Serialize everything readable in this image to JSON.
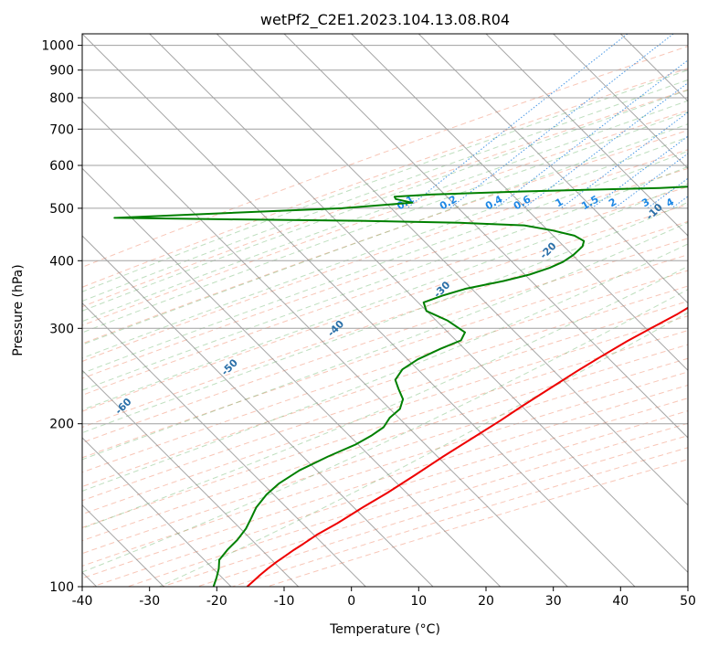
{
  "chart_data": {
    "type": "line",
    "title": "wetPf2_C2E1.2023.104.13.08.R04",
    "xlabel": "Temperature (°C)",
    "ylabel": "Pressure (hPa)",
    "xlim": [
      -40,
      50
    ],
    "ylim": [
      1050,
      100
    ],
    "x_ticks": [
      "-40",
      "-30",
      "-20",
      "-10",
      "0",
      "10",
      "20",
      "30",
      "40",
      "50"
    ],
    "y_ticks": [
      {
        "p": 100,
        "label": "100"
      },
      {
        "p": 200,
        "label": "200"
      },
      {
        "p": 300,
        "label": "300"
      },
      {
        "p": 400,
        "label": "400"
      },
      {
        "p": 500,
        "label": "500"
      },
      {
        "p": 600,
        "label": "600"
      },
      {
        "p": 700,
        "label": "700"
      },
      {
        "p": 800,
        "label": "800"
      },
      {
        "p": 900,
        "label": "900"
      },
      {
        "p": 1000,
        "label": "1000"
      }
    ],
    "skew_degrees": 45,
    "grid": true,
    "series": [
      {
        "name": "temperature",
        "color": "#ee0000",
        "points": [
          [
            25.1,
            850
          ],
          [
            24.9,
            830
          ],
          [
            24.6,
            815
          ],
          [
            24.3,
            800
          ],
          [
            24.0,
            785
          ],
          [
            23.3,
            760
          ],
          [
            22.6,
            740
          ],
          [
            21.8,
            720
          ],
          [
            21.2,
            700
          ],
          [
            20.9,
            680
          ],
          [
            20.9,
            660
          ],
          [
            21.1,
            640
          ],
          [
            21.4,
            620
          ],
          [
            21.9,
            605
          ],
          [
            22.4,
            595
          ],
          [
            22.4,
            585
          ],
          [
            21.8,
            575
          ],
          [
            21.4,
            565
          ],
          [
            21.3,
            550
          ],
          [
            21.4,
            535
          ],
          [
            21.3,
            520
          ],
          [
            20.9,
            505
          ],
          [
            20.5,
            490
          ],
          [
            19.9,
            475
          ],
          [
            19.3,
            460
          ],
          [
            18.8,
            450
          ],
          [
            18.1,
            440
          ],
          [
            16.9,
            425
          ],
          [
            15.1,
            405
          ],
          [
            13.4,
            390
          ],
          [
            11.9,
            376
          ],
          [
            10.8,
            362
          ],
          [
            10.0,
            350
          ],
          [
            9.1,
            335
          ],
          [
            7.9,
            318
          ],
          [
            6.3,
            302
          ],
          [
            4.5,
            284
          ],
          [
            2.9,
            266
          ],
          [
            1.5,
            250
          ],
          [
            0.1,
            233
          ],
          [
            -1.5,
            215
          ],
          [
            -2.5,
            203
          ],
          [
            -4.1,
            188
          ],
          [
            -5.7,
            174
          ],
          [
            -7.1,
            161
          ],
          [
            -8.6,
            149
          ],
          [
            -10.1,
            140
          ],
          [
            -11.5,
            131
          ],
          [
            -12.8,
            125
          ],
          [
            -13.5,
            120
          ],
          [
            -14.0,
            117
          ],
          [
            -14.4,
            114
          ],
          [
            -14.8,
            111
          ],
          [
            -15.1,
            108
          ],
          [
            -15.3,
            105
          ],
          [
            -15.4,
            102
          ],
          [
            -15.5,
            100
          ]
        ]
      },
      {
        "name": "dewpoint",
        "color": "#008000",
        "points": [
          [
            20.1,
            855
          ],
          [
            19.1,
            840
          ],
          [
            17.3,
            825
          ],
          [
            17.2,
            810
          ],
          [
            16.3,
            800
          ],
          [
            16.9,
            790
          ],
          [
            17.5,
            780
          ],
          [
            16.0,
            765
          ],
          [
            16.1,
            750
          ],
          [
            17.5,
            740
          ],
          [
            17.2,
            725
          ],
          [
            16.8,
            712
          ],
          [
            16.2,
            705
          ],
          [
            9.3,
            686
          ],
          [
            3.6,
            670
          ],
          [
            -0.6,
            655
          ],
          [
            -3.8,
            643
          ],
          [
            -4.5,
            635
          ],
          [
            -4.1,
            628
          ],
          [
            -0.1,
            618
          ],
          [
            4.6,
            608
          ],
          [
            9.7,
            598
          ],
          [
            14.2,
            590
          ],
          [
            15.9,
            583
          ],
          [
            16.7,
            576
          ],
          [
            12.8,
            565
          ],
          [
            -0.3,
            555
          ],
          [
            -13.4,
            545
          ],
          [
            -33.2,
            537
          ],
          [
            -46.5,
            530
          ],
          [
            -51.5,
            525
          ],
          [
            -51.0,
            520
          ],
          [
            -48.0,
            512
          ],
          [
            -57.6,
            500
          ],
          [
            -77.0,
            488
          ],
          [
            -90.0,
            480
          ],
          [
            -73.0,
            477
          ],
          [
            -53.0,
            474
          ],
          [
            -38.0,
            470
          ],
          [
            -28.0,
            465
          ],
          [
            -23.0,
            455
          ],
          [
            -19.0,
            445
          ],
          [
            -16.8,
            435
          ],
          [
            -16.2,
            425
          ],
          [
            -16.3,
            410
          ],
          [
            -16.8,
            398
          ],
          [
            -17.9,
            388
          ],
          [
            -19.9,
            377
          ],
          [
            -22.8,
            367
          ],
          [
            -27.3,
            355
          ],
          [
            -29.7,
            345
          ],
          [
            -31.5,
            335
          ],
          [
            -29.8,
            323
          ],
          [
            -25.2,
            310
          ],
          [
            -20.9,
            295
          ],
          [
            -20.3,
            285
          ],
          [
            -22.1,
            275
          ],
          [
            -23.9,
            263
          ],
          [
            -24.7,
            252
          ],
          [
            -24.2,
            241
          ],
          [
            -22.4,
            232
          ],
          [
            -20.2,
            222
          ],
          [
            -19.2,
            213
          ],
          [
            -19.4,
            205
          ],
          [
            -18.9,
            197
          ],
          [
            -19.5,
            190
          ],
          [
            -20.5,
            183
          ],
          [
            -22.8,
            174
          ],
          [
            -25.0,
            164
          ],
          [
            -26.1,
            155
          ],
          [
            -26.3,
            148
          ],
          [
            -25.9,
            140
          ],
          [
            -25.1,
            134
          ],
          [
            -24.3,
            128
          ],
          [
            -23.9,
            122
          ],
          [
            -23.9,
            117
          ],
          [
            -23.6,
            112
          ],
          [
            -22.4,
            108
          ],
          [
            -21.4,
            104
          ],
          [
            -20.5,
            100
          ]
        ]
      }
    ],
    "mixing_ratio_labels": [
      "0.1",
      "0.2",
      "0.4",
      "0.6",
      "1",
      "1.5",
      "2",
      "3",
      "4",
      "6",
      "8",
      "10",
      "13",
      "16",
      "20",
      "25",
      "30",
      "36"
    ],
    "dry_adiabat_labels": [
      "-100",
      "-90",
      "-80",
      "-70",
      "-60",
      "-50",
      "-40",
      "-30",
      "-20",
      "-10"
    ],
    "moist_adiabat_labels": [
      "0",
      "10",
      "20",
      "30",
      "40"
    ]
  }
}
